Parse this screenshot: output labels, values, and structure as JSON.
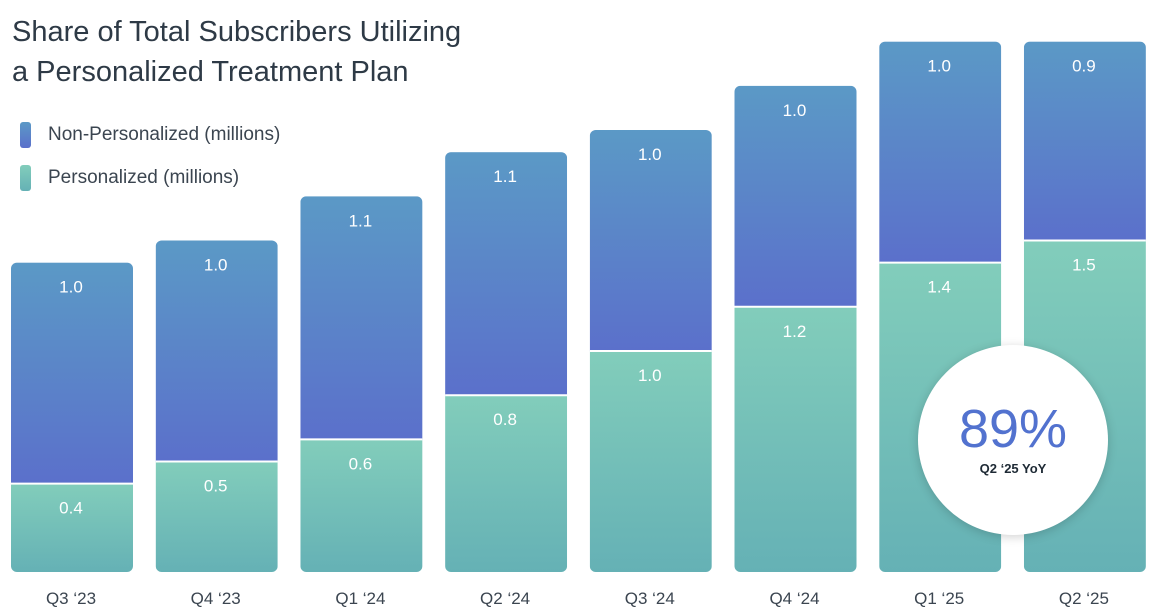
{
  "chart_data": {
    "type": "bar",
    "stacked": true,
    "title": "Share of Total Subscribers Utilizing a Personalized Treatment Plan",
    "title_lines": [
      "Share of Total Subscribers Utilizing",
      "a Personalized Treatment Plan"
    ],
    "categories": [
      "Q3 ‘23",
      "Q4 ‘23",
      "Q1 ‘24",
      "Q2 ‘24",
      "Q3 ‘24",
      "Q4 ‘24",
      "Q1 ‘25",
      "Q2 ‘25"
    ],
    "series": [
      {
        "name": "Personalized (millions)",
        "values": [
          0.4,
          0.5,
          0.6,
          0.8,
          1.0,
          1.2,
          1.4,
          1.5
        ],
        "labels": [
          "0.4",
          "0.5",
          "0.6",
          "0.8",
          "1.0",
          "1.2",
          "1.4",
          "1.5"
        ]
      },
      {
        "name": "Non-Personalized (millions)",
        "values": [
          1.0,
          1.0,
          1.1,
          1.1,
          1.0,
          1.0,
          1.0,
          0.9
        ],
        "labels": [
          "1.0",
          "1.0",
          "1.1",
          "1.1",
          "1.0",
          "1.0",
          "1.0",
          "0.9"
        ]
      }
    ],
    "xlabel": "",
    "ylabel": "",
    "ylim": [
      0,
      2.4
    ],
    "grid": false,
    "legend_position": "top-left"
  },
  "legend": [
    {
      "label": "Non-Personalized (millions)",
      "color": "#5a74cc"
    },
    {
      "label": "Personalized (millions)",
      "color": "#7ecab9"
    }
  ],
  "callout": {
    "value": "89%",
    "caption": "Q2 ‘25 YoY"
  },
  "colors": {
    "non_personalized_top": "#5b99c6",
    "non_personalized_bottom": "#5b70cb",
    "personalized_top": "#82cdbb",
    "personalized_bottom": "#65b1b5"
  }
}
